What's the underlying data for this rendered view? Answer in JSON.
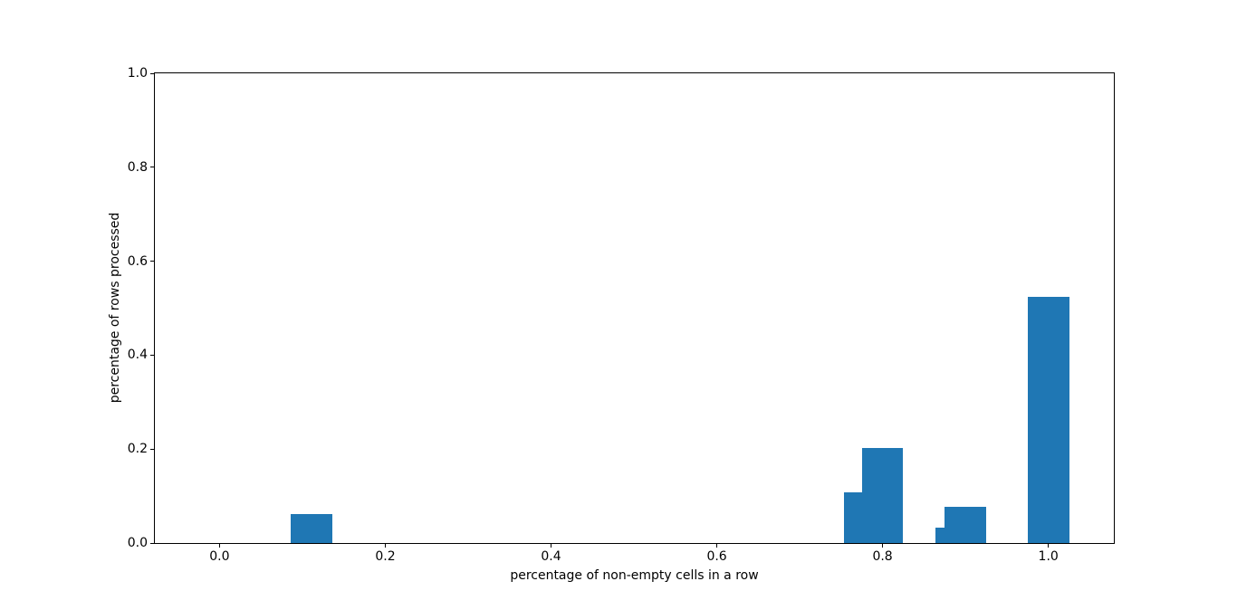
{
  "figure": {
    "background": "#ffffff",
    "text_color": "#000000"
  },
  "chart_data": {
    "type": "bar",
    "title": "",
    "xlabel": "percentage of non-empty cells in a row",
    "ylabel": "percentage of rows processed",
    "bar_color": "#1f77b4",
    "bar_width": 0.05,
    "x": [
      0.111,
      0.778,
      0.8,
      0.889,
      0.9,
      1.0
    ],
    "values": [
      0.062,
      0.108,
      0.202,
      0.032,
      0.077,
      0.524
    ],
    "xlim": [
      -0.078,
      1.079
    ],
    "ylim": [
      0.0,
      1.0
    ],
    "x_ticks": [
      0.0,
      0.2,
      0.4,
      0.6,
      0.8,
      1.0
    ],
    "x_tick_labels": [
      "0.0",
      "0.2",
      "0.4",
      "0.6",
      "0.8",
      "1.0"
    ],
    "y_ticks": [
      0.0,
      0.2,
      0.4,
      0.6,
      0.8,
      1.0
    ],
    "y_tick_labels": [
      "0.0",
      "0.2",
      "0.4",
      "0.6",
      "0.8",
      "1.0"
    ],
    "grid": false,
    "legend": null
  }
}
